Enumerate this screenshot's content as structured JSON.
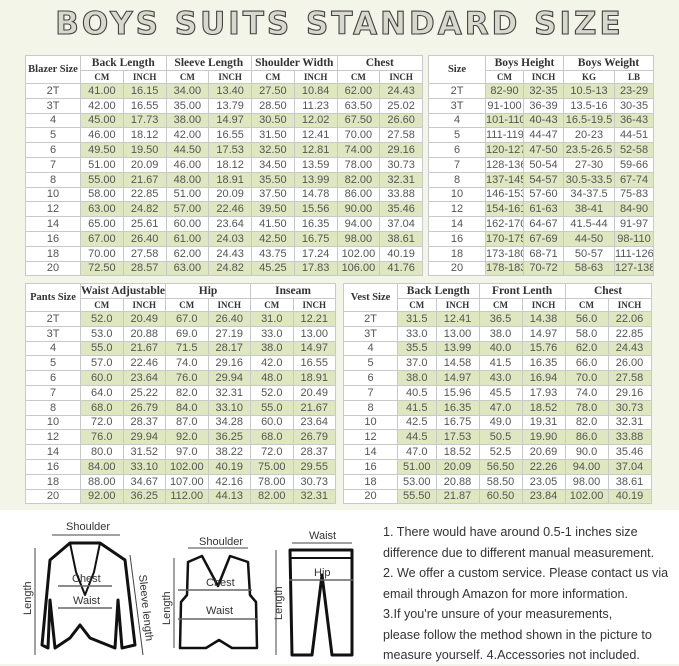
{
  "title": "BOYS SUITS STANDARD SIZE",
  "colors": {
    "background": "#f3f5e8",
    "row_highlight": "#dfe7c1",
    "border": "#c9c9c9"
  },
  "tables": {
    "blazer": {
      "size_label": "Blazer Size",
      "groups": [
        "Back Length",
        "Sleeve Length",
        "Shoulder Width",
        "Chest"
      ],
      "units": [
        "CM",
        "INCH",
        "CM",
        "INCH",
        "CM",
        "INCH",
        "CM",
        "INCH"
      ],
      "rows": [
        [
          "2T",
          "41.00",
          "16.15",
          "34.00",
          "13.40",
          "27.50",
          "10.84",
          "62.00",
          "24.43"
        ],
        [
          "3T",
          "42.00",
          "16.55",
          "35.00",
          "13.79",
          "28.50",
          "11.23",
          "63.50",
          "25.02"
        ],
        [
          "4",
          "45.00",
          "17.73",
          "38.00",
          "14.97",
          "30.50",
          "12.02",
          "67.50",
          "26.60"
        ],
        [
          "5",
          "46.00",
          "18.12",
          "42.00",
          "16.55",
          "31.50",
          "12.41",
          "70.00",
          "27.58"
        ],
        [
          "6",
          "49.50",
          "19.50",
          "44.50",
          "17.53",
          "32.50",
          "12.81",
          "74.00",
          "29.16"
        ],
        [
          "7",
          "51.00",
          "20.09",
          "46.00",
          "18.12",
          "34.50",
          "13.59",
          "78.00",
          "30.73"
        ],
        [
          "8",
          "55.00",
          "21.67",
          "48.00",
          "18.91",
          "35.50",
          "13.99",
          "82.00",
          "32.31"
        ],
        [
          "10",
          "58.00",
          "22.85",
          "51.00",
          "20.09",
          "37.50",
          "14.78",
          "86.00",
          "33.88"
        ],
        [
          "12",
          "63.00",
          "24.82",
          "57.00",
          "22.46",
          "39.50",
          "15.56",
          "90.00",
          "35.46"
        ],
        [
          "14",
          "65.00",
          "25.61",
          "60.00",
          "23.64",
          "41.50",
          "16.35",
          "94.00",
          "37.04"
        ],
        [
          "16",
          "67.00",
          "26.40",
          "61.00",
          "24.03",
          "42.50",
          "16.75",
          "98.00",
          "38.61"
        ],
        [
          "18",
          "70.00",
          "27.58",
          "62.00",
          "24.43",
          "43.75",
          "17.24",
          "102.00",
          "40.19"
        ],
        [
          "20",
          "72.50",
          "28.57",
          "63.00",
          "24.82",
          "45.25",
          "17.83",
          "106.00",
          "41.76"
        ]
      ]
    },
    "boys": {
      "size_label": "Size",
      "groups": [
        "Boys Height",
        "Boys Weight"
      ],
      "units": [
        "CM",
        "INCH",
        "KG",
        "LB"
      ],
      "rows": [
        [
          "2T",
          "82-90",
          "32-35",
          "10.5-13",
          "23-29"
        ],
        [
          "3T",
          "91-100",
          "36-39",
          "13.5-16",
          "30-35"
        ],
        [
          "4",
          "101-110",
          "40-43",
          "16.5-19.5",
          "36-43"
        ],
        [
          "5",
          "111-119",
          "44-47",
          "20-23",
          "44-51"
        ],
        [
          "6",
          "120-127",
          "47-50",
          "23.5-26.5",
          "52-58"
        ],
        [
          "7",
          "128-136",
          "50-54",
          "27-30",
          "59-66"
        ],
        [
          "8",
          "137-145",
          "54-57",
          "30.5-33.5",
          "67-74"
        ],
        [
          "10",
          "146-153",
          "57-60",
          "34-37.5",
          "75-83"
        ],
        [
          "12",
          "154-161",
          "61-63",
          "38-41",
          "84-90"
        ],
        [
          "14",
          "162-170",
          "64-67",
          "41.5-44",
          "91-97"
        ],
        [
          "16",
          "170-175",
          "67-69",
          "44-50",
          "98-110"
        ],
        [
          "18",
          "173-180",
          "68-71",
          "50-57",
          "111-126"
        ],
        [
          "20",
          "178-183",
          "70-72",
          "58-63",
          "127-138"
        ]
      ]
    },
    "pants": {
      "size_label": "Pants Size",
      "groups": [
        "Waist Adjustable",
        "Hip",
        "Inseam"
      ],
      "units": [
        "CM",
        "INCH",
        "CM",
        "INCH",
        "CM",
        "INCH"
      ],
      "rows": [
        [
          "2T",
          "52.0",
          "20.49",
          "67.0",
          "26.40",
          "31.0",
          "12.21"
        ],
        [
          "3T",
          "53.0",
          "20.88",
          "69.0",
          "27.19",
          "33.0",
          "13.00"
        ],
        [
          "4",
          "55.0",
          "21.67",
          "71.5",
          "28.17",
          "38.0",
          "14.97"
        ],
        [
          "5",
          "57.0",
          "22.46",
          "74.0",
          "29.16",
          "42.0",
          "16.55"
        ],
        [
          "6",
          "60.0",
          "23.64",
          "76.0",
          "29.94",
          "48.0",
          "18.91"
        ],
        [
          "7",
          "64.0",
          "25.22",
          "82.0",
          "32.31",
          "52.0",
          "20.49"
        ],
        [
          "8",
          "68.0",
          "26.79",
          "84.0",
          "33.10",
          "55.0",
          "21.67"
        ],
        [
          "10",
          "72.0",
          "28.37",
          "87.0",
          "34.28",
          "60.0",
          "23.64"
        ],
        [
          "12",
          "76.0",
          "29.94",
          "92.0",
          "36.25",
          "68.0",
          "26.79"
        ],
        [
          "14",
          "80.0",
          "31.52",
          "97.0",
          "38.22",
          "72.0",
          "28.37"
        ],
        [
          "16",
          "84.00",
          "33.10",
          "102.00",
          "40.19",
          "75.00",
          "29.55"
        ],
        [
          "18",
          "88.00",
          "34.67",
          "107.00",
          "42.16",
          "78.00",
          "30.73"
        ],
        [
          "20",
          "92.00",
          "36.25",
          "112.00",
          "44.13",
          "82.00",
          "32.31"
        ]
      ]
    },
    "vest": {
      "size_label": "Vest Size",
      "groups": [
        "Back Length",
        "Front Lenth",
        "Chest"
      ],
      "units": [
        "CM",
        "INCH",
        "CM",
        "INCH",
        "CM",
        "INCH"
      ],
      "rows": [
        [
          "2T",
          "31.5",
          "12.41",
          "36.5",
          "14.38",
          "56.0",
          "22.06"
        ],
        [
          "3T",
          "33.0",
          "13.00",
          "38.0",
          "14.97",
          "58.0",
          "22.85"
        ],
        [
          "4",
          "35.5",
          "13.99",
          "40.0",
          "15.76",
          "62.0",
          "24.43"
        ],
        [
          "5",
          "37.0",
          "14.58",
          "41.5",
          "16.35",
          "66.0",
          "26.00"
        ],
        [
          "6",
          "38.0",
          "14.97",
          "43.0",
          "16.94",
          "70.0",
          "27.58"
        ],
        [
          "7",
          "40.5",
          "15.96",
          "45.5",
          "17.93",
          "74.0",
          "29.16"
        ],
        [
          "8",
          "41.5",
          "16.35",
          "47.0",
          "18.52",
          "78.0",
          "30.73"
        ],
        [
          "10",
          "42.5",
          "16.75",
          "49.0",
          "19.31",
          "82.0",
          "32.31"
        ],
        [
          "12",
          "44.5",
          "17.53",
          "50.5",
          "19.90",
          "86.0",
          "33.88"
        ],
        [
          "14",
          "47.0",
          "18.52",
          "52.5",
          "20.69",
          "90.0",
          "35.46"
        ],
        [
          "16",
          "51.00",
          "20.09",
          "56.50",
          "22.26",
          "94.00",
          "37.04"
        ],
        [
          "18",
          "53.00",
          "20.88",
          "58.50",
          "23.05",
          "98.00",
          "38.61"
        ],
        [
          "20",
          "55.50",
          "21.87",
          "60.50",
          "23.84",
          "102.00",
          "40.19"
        ]
      ]
    }
  },
  "diagrams": {
    "blazer": {
      "shoulder": "Shoulder",
      "chest": "Chest",
      "waist": "Waist",
      "length": "Length",
      "sleeve": "Sleeve length"
    },
    "vest": {
      "shoulder": "Shoulder",
      "chest": "Chest",
      "waist": "Waist",
      "length": "Length"
    },
    "pants": {
      "waist": "Waist",
      "hip": "Hip",
      "length": "Length"
    }
  },
  "notes": [
    "1. There would have around 0.5-1 inches size",
    "difference due to different manual measurement.",
    "2. We offer a custom service. Please contact us via",
    "email through Amazon for more information.",
    "3.If you're unsure of your measurements,",
    "please follow the method shown in the picture to",
    "measure yourself. 4.Accessories not included."
  ]
}
